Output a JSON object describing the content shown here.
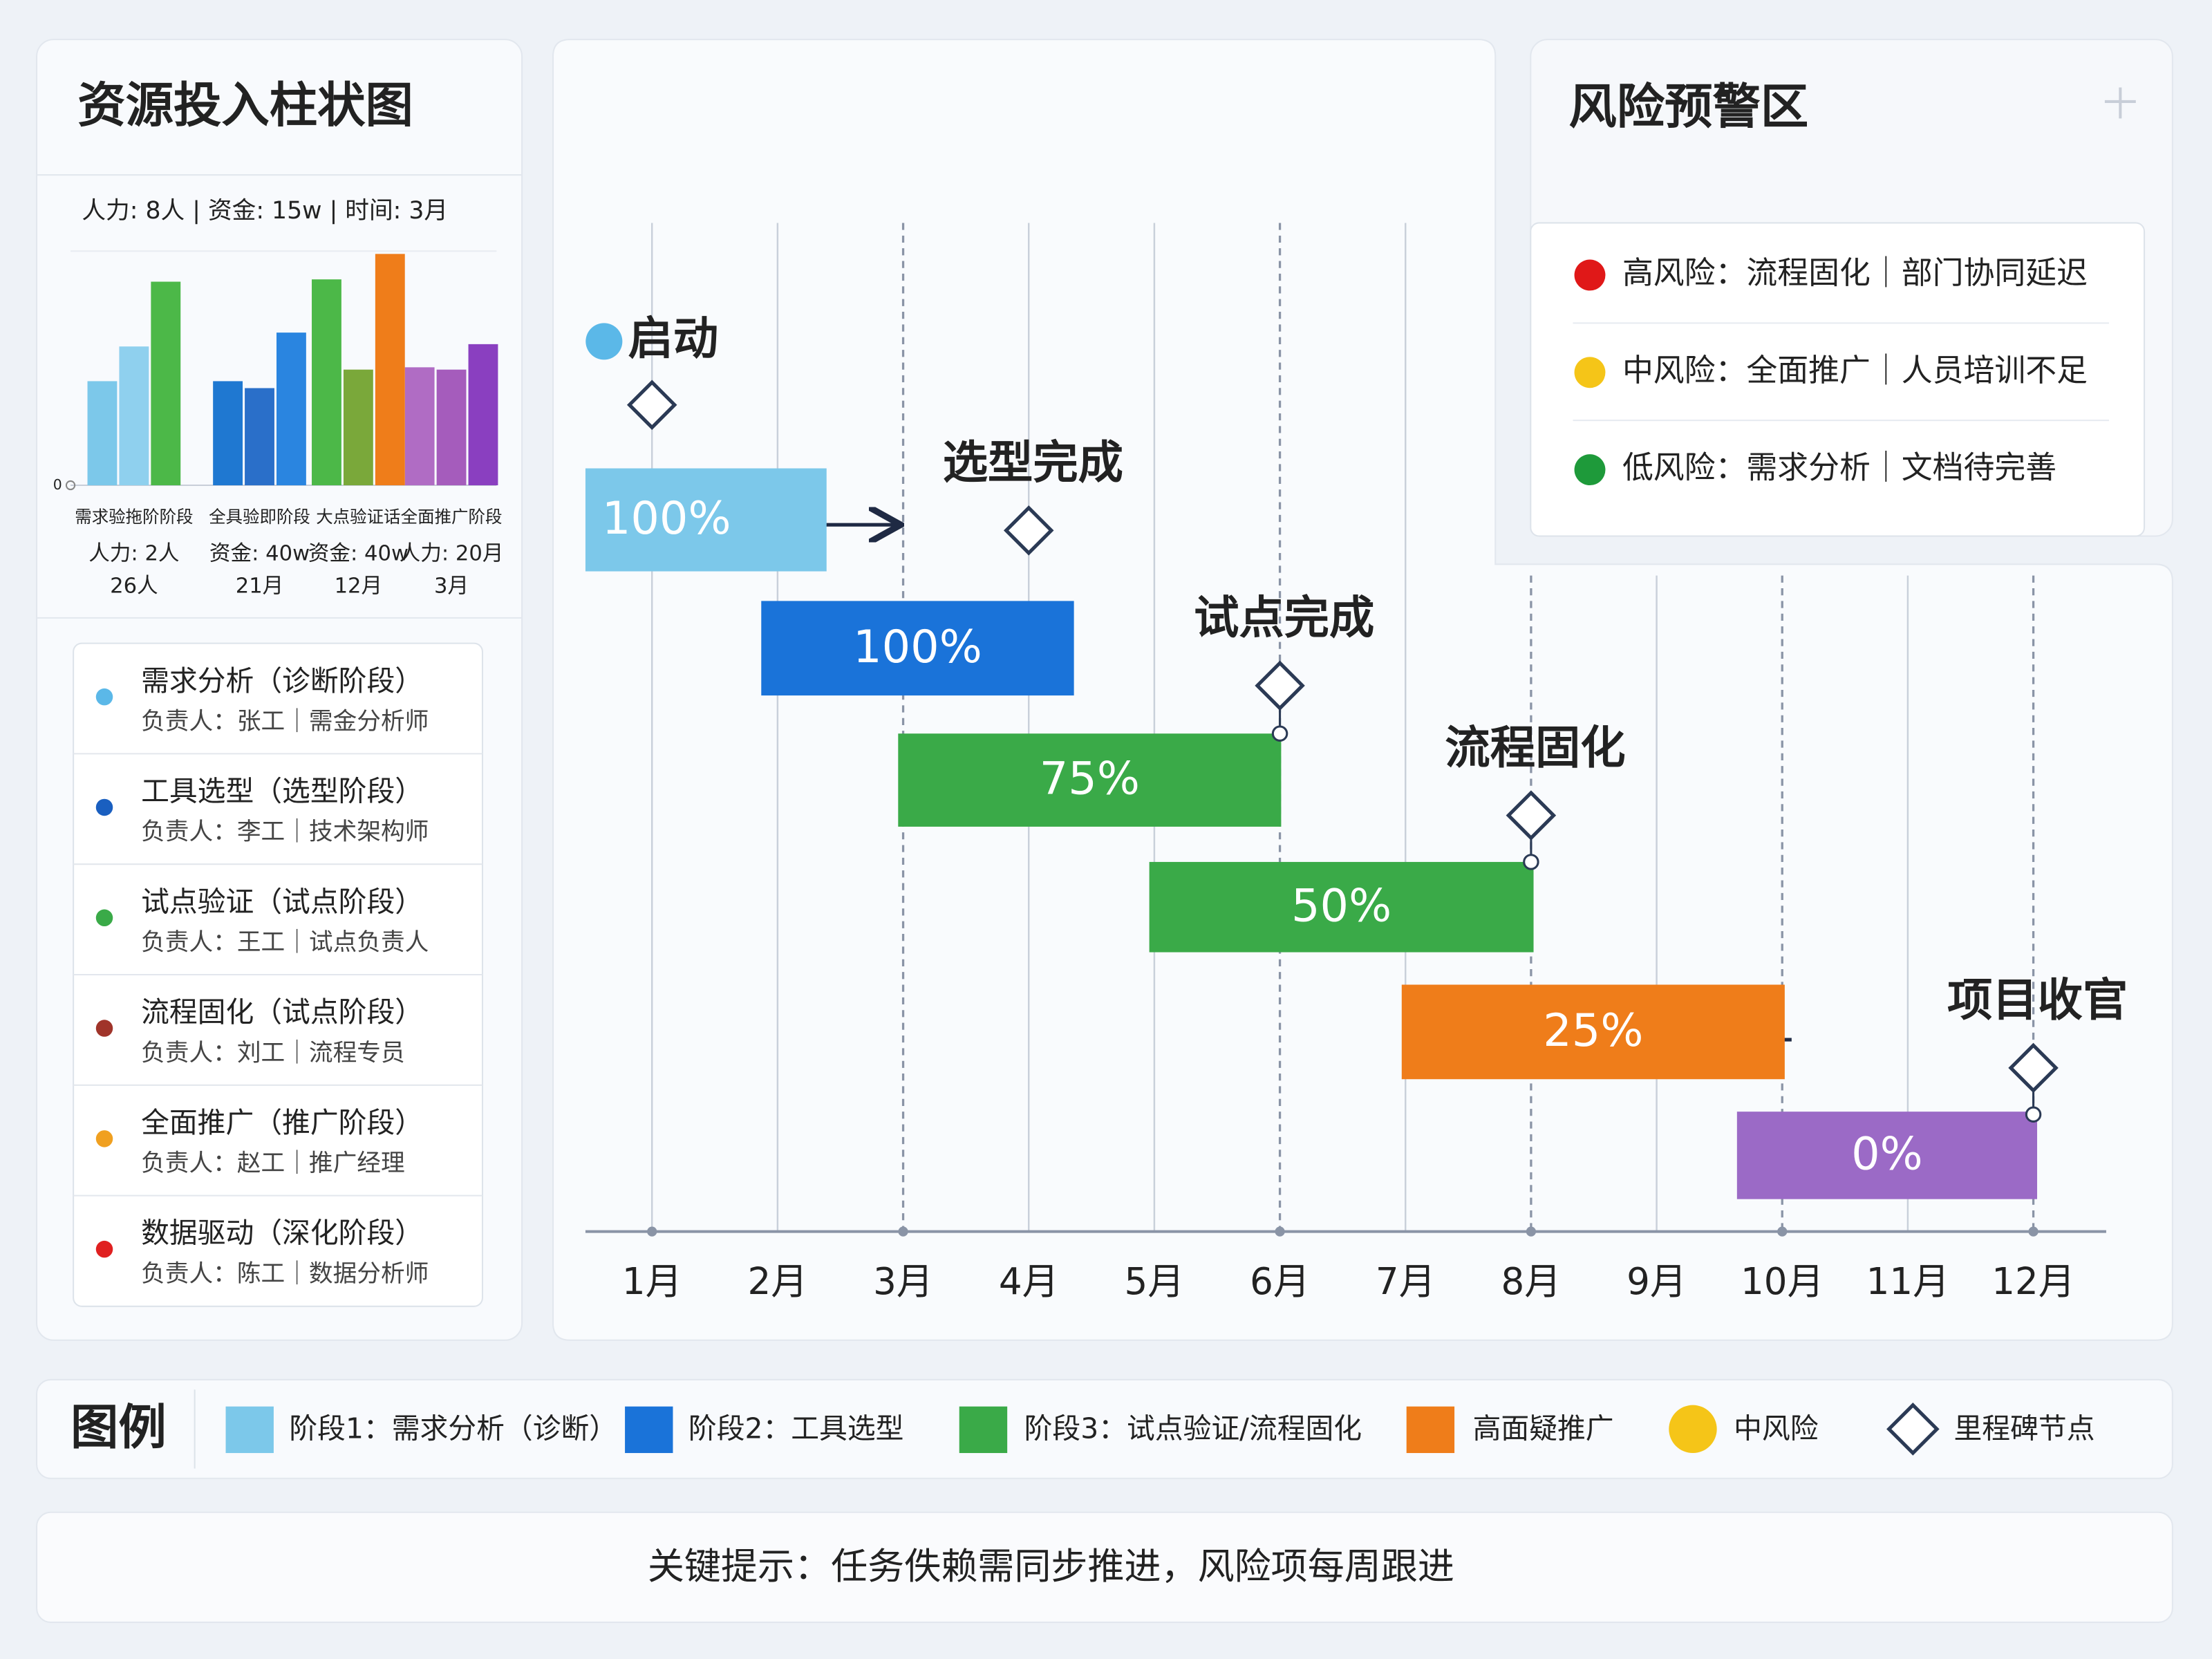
{
  "chart_data": [
    {
      "type": "bar",
      "title": "资源投入柱状图",
      "subtitle": "人力: 8人 | 资金: 15w | 时间: 3月",
      "categories": [
        "需求验拖阶阶段",
        "全具验即阶段",
        "大点验证话",
        "全面推广阶段"
      ],
      "category_notes": [
        [
          "人力: 2人",
          "26人"
        ],
        [
          "资金: 40w",
          "21月"
        ],
        [
          "资金: 40w",
          "12月"
        ],
        [
          "人力: 20月",
          "3月"
        ]
      ],
      "series": [
        {
          "values": [
            45,
            45,
            89,
            51
          ],
          "colors": [
            "#7cc8ea",
            "#1f78d1",
            "#4cb848",
            "#b06cc4"
          ]
        },
        {
          "values": [
            60,
            42,
            50,
            50
          ],
          "colors": [
            "#8fd0ee",
            "#2a6fc9",
            "#7aa83a",
            "#a55cbc"
          ]
        },
        {
          "values": [
            88,
            66,
            100,
            61
          ],
          "colors": [
            "#4cb848",
            "#2a85e0",
            "#ef7d1a",
            "#8a3fc0"
          ]
        }
      ],
      "ylim": [
        0,
        100
      ],
      "yticks": [
        0
      ]
    },
    {
      "type": "gantt",
      "tasks": {
        "starts": [
          0.47,
          1.87,
          2.96,
          4.96,
          6.97,
          9.64
        ],
        "ends": [
          2.39,
          4.36,
          6.01,
          8.02,
          10.02,
          12.03
        ],
        "labels": [
          "100%",
          "100%",
          "75%",
          "50%",
          "25%",
          "0%"
        ],
        "colors": [
          "#7cc8ea",
          "#1a73d9",
          "#3aaa48",
          "#3aaa48",
          "#ef7d1a",
          "#9b6ac6"
        ]
      },
      "milestones": {
        "names": [
          "启动",
          "选型完成",
          "试点完成",
          "流程固化",
          "项目收官"
        ],
        "x": [
          1,
          4,
          6,
          8,
          12
        ]
      },
      "xlim": [
        0.47,
        12.58
      ],
      "xticks": [
        {
          "value": 1,
          "label": "1月"
        },
        {
          "value": 2,
          "label": "2月"
        },
        {
          "value": 3,
          "label": "3月"
        },
        {
          "value": 4,
          "label": "4月"
        },
        {
          "value": 5,
          "label": "5月"
        },
        {
          "value": 6,
          "label": "6月"
        },
        {
          "value": 7,
          "label": "7月"
        },
        {
          "value": 8,
          "label": "8月"
        },
        {
          "value": 9,
          "label": "9月"
        },
        {
          "value": 10,
          "label": "10月"
        },
        {
          "value": 11,
          "label": "11月"
        },
        {
          "value": 12,
          "label": "12月"
        }
      ],
      "dashed_x": [
        3,
        6,
        8,
        10,
        12
      ]
    }
  ],
  "roles": [
    {
      "title": "需求分析（诊断阶段）",
      "subtitle": "负责人：张工｜需金分析师",
      "color": "#5bb8e8"
    },
    {
      "title": "工具选型（选型阶段）",
      "subtitle": "负责人：李工｜技术架构师",
      "color": "#1a5fc0"
    },
    {
      "title": "试点验证（试点阶段）",
      "subtitle": "负责人：王工｜试点负责人",
      "color": "#3aaa48"
    },
    {
      "title": "流程固化（试点阶段）",
      "subtitle": "负责人：刘工｜流程专员",
      "color": "#a0342a"
    },
    {
      "title": "全面推广（推广阶段）",
      "subtitle": "负责人：赵工｜推广经理",
      "color": "#f0a020"
    },
    {
      "title": "数据驱动（深化阶段）",
      "subtitle": "负责人：陈工｜数据分析师",
      "color": "#e02020"
    }
  ],
  "risk_panel": {
    "title": "风险预警区",
    "items": [
      {
        "text": "高风险：流程固化｜部门协同延迟",
        "color": "#e01818"
      },
      {
        "text": "中风险：全面推广｜人员培训不足",
        "color": "#f5c518"
      },
      {
        "text": "低风险：需求分析｜文档待完善",
        "color": "#1e9a3a"
      }
    ]
  },
  "legend": {
    "title": "图例",
    "items": [
      {
        "label": "阶段1：需求分析（诊断）",
        "color": "#7cc8ea",
        "shape": "square"
      },
      {
        "label": "阶段2：工具选型",
        "color": "#1a73d9",
        "shape": "square"
      },
      {
        "label": "阶段3：试点验证/流程固化",
        "color": "#3aaa48",
        "shape": "square"
      },
      {
        "label": "高面疑推广",
        "color": "#ef7d1a",
        "shape": "square"
      },
      {
        "label": "中风险",
        "color": "#f5c518",
        "shape": "circle"
      },
      {
        "label": "里程碑节点",
        "color": "#2b3a55",
        "shape": "diamond"
      }
    ]
  },
  "footer": {
    "text": "关键提示：任务佚赖需同步推进，风险项每周跟进"
  }
}
